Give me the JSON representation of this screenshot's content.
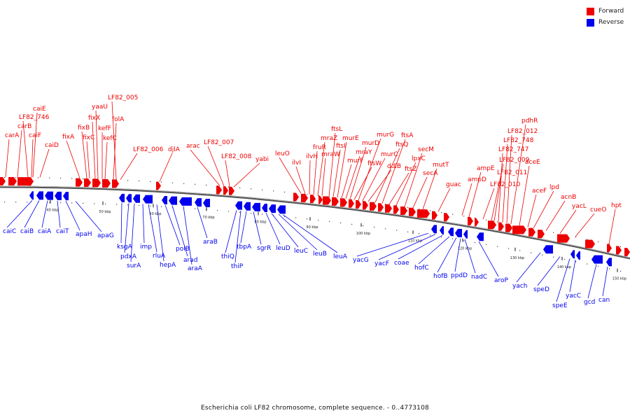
{
  "caption": "Escherichia coli LF82 chromosome, complete sequence. - 0..4773108",
  "legend": [
    {
      "label": "Forward",
      "color": "#ee0000"
    },
    {
      "label": "Reverse",
      "color": "#0000ee"
    }
  ],
  "colors": {
    "forward": "#ee0000",
    "reverse": "#0000ee",
    "backbone": "#555555"
  },
  "ticks": [
    "40 kbp",
    "50 kbp",
    "60 kbp",
    "70 kbp",
    "80 kbp",
    "90 kbp",
    "100 kbp",
    "110 kbp",
    "120 kbp",
    "130 kbp",
    "140 kbp",
    "150 kbp"
  ],
  "forward_genes": [
    "carA",
    "carB",
    "LF82_746",
    "caiF",
    "caiE",
    "caiD",
    "fixA",
    "fixB",
    "fixC",
    "fixX",
    "yaaU",
    "kefF",
    "kefC",
    "folA",
    "LF82_005",
    "LF82_006",
    "djlA",
    "arac",
    "LF82_007",
    "LF82_008",
    "yabi",
    "leuO",
    "ilvI",
    "ilvH",
    "fruR",
    "mraZ",
    "mraW",
    "ftsL",
    "ftsI",
    "murE",
    "murF",
    "mraY",
    "murD",
    "ftsW",
    "murG",
    "murC",
    "ddlB",
    "ftsQ",
    "ftsA",
    "ftsZ",
    "lpxC",
    "secM",
    "secA",
    "mutT",
    "guac",
    "ampD",
    "ampE",
    "LF82_010",
    "LF82_009",
    "LF82_011",
    "LF82_747",
    "LF82_748",
    "LF82_012",
    "pdhR",
    "aceE",
    "aceF",
    "lpd",
    "acnB",
    "yacL",
    "cueO",
    "hpt"
  ],
  "reverse_genes": [
    "caiC",
    "caiB",
    "caiA",
    "caiT",
    "apaH",
    "apaG",
    "ksgA",
    "pdxA",
    "surA",
    "imp",
    "rluA",
    "hepA",
    "polB",
    "arad",
    "araA",
    "araB",
    "thiQ",
    "thiP",
    "tbpA",
    "sgrR",
    "leuD",
    "leuC",
    "leuB",
    "leuA",
    "yacG",
    "yacF",
    "coae",
    "hofC",
    "hofB",
    "ppdD",
    "nadC",
    "aroP",
    "yach",
    "speD",
    "speE",
    "yacC",
    "gcd",
    "can"
  ]
}
